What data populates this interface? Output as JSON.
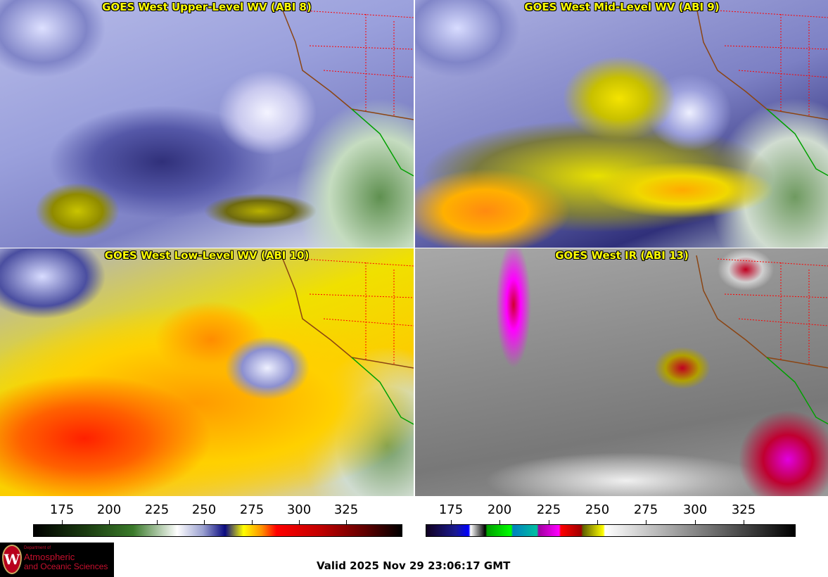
{
  "panels": [
    {
      "title": "GOES West Upper-Level WV (ABI 8)"
    },
    {
      "title": "GOES West Mid-Level WV (ABI 9)"
    },
    {
      "title": "GOES West Low-Level WV (ABI 10)"
    },
    {
      "title": "GOES West IR (ABI 13)"
    }
  ],
  "colorbars": {
    "wv": {
      "ticks": [
        "175",
        "200",
        "225",
        "250",
        "275",
        "300",
        "325"
      ]
    },
    "ir": {
      "ticks": [
        "175",
        "200",
        "225",
        "250",
        "275",
        "300",
        "325"
      ]
    }
  },
  "logo": {
    "line1": "Department of",
    "line2": "Atmospheric",
    "line3": "and Oceanic Sciences",
    "crest_letter": "W"
  },
  "valid_time": "Valid 2025 Nov 29 23:06:17 GMT",
  "colors": {
    "title": "#ffff00",
    "state_borders": "#ff0000",
    "coast": "#8b4513",
    "mexico_coast": "#00a000"
  }
}
